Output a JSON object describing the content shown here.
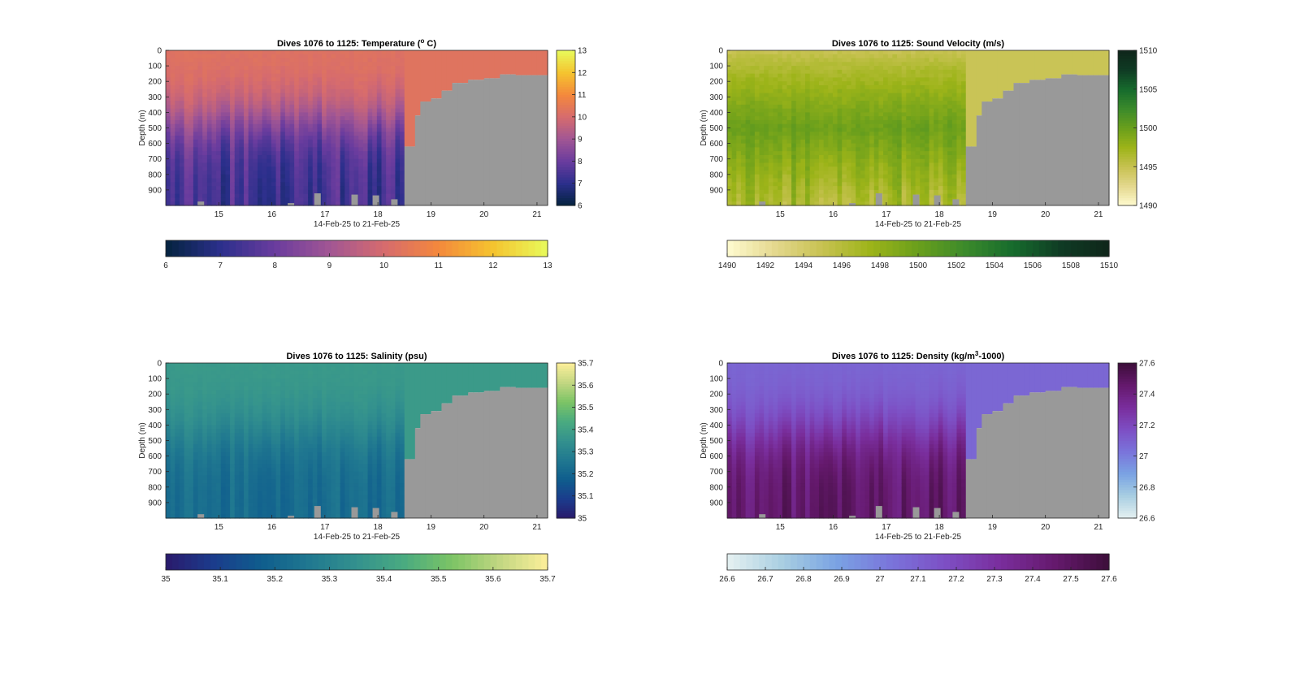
{
  "figure": {
    "background": "#ffffff",
    "gap_color": "#999999",
    "axis_color": "#262626"
  },
  "chart_data": [
    {
      "type": "heatmap",
      "title": "Dives 1076 to 1125: Temperature (° C)",
      "title_parts": [
        "Dives 1076 to 1125: Temperature (",
        "o",
        " C)"
      ],
      "ylabel": "Depth (m)",
      "xlabel": "14-Feb-25 to 21-Feb-25",
      "xlim": [
        14,
        21.2
      ],
      "ylim": [
        0,
        1000
      ],
      "y_reversed": true,
      "xticks": [
        15,
        16,
        17,
        18,
        19,
        20,
        21
      ],
      "xtick_labels": [
        "15",
        "16",
        "17",
        "18",
        "19",
        "20",
        "21"
      ],
      "yticks": [
        0,
        100,
        200,
        300,
        400,
        500,
        600,
        700,
        800,
        900
      ],
      "ytick_labels": [
        "0",
        "100",
        "200",
        "300",
        "400",
        "500",
        "600",
        "700",
        "800",
        "900"
      ],
      "colormap": "thermal",
      "colormap_stops": [
        "#04233e",
        "#2b2f8c",
        "#6a3c9e",
        "#a15694",
        "#d66b6e",
        "#f4883c",
        "#f5c42f",
        "#e8fa5b"
      ],
      "clim": [
        6,
        13
      ],
      "right_colorbar_ticks": [
        6,
        7,
        8,
        9,
        10,
        11,
        12,
        13
      ],
      "bottom_colorbar_ticks": [
        6,
        7,
        8,
        9,
        10,
        11,
        12,
        13
      ],
      "profile": {
        "surface": 10.3,
        "deep": 7.3,
        "thermocline_m": 450,
        "variation": 0.9
      },
      "data_end_day": 18.5,
      "gap_top_depth_by_day": [
        [
          18.5,
          620
        ],
        [
          18.65,
          420
        ],
        [
          18.8,
          330
        ],
        [
          19.0,
          310
        ],
        [
          19.2,
          260
        ],
        [
          19.4,
          210
        ],
        [
          19.7,
          190
        ],
        [
          20.0,
          180
        ],
        [
          20.25,
          155
        ],
        [
          20.6,
          160
        ],
        [
          21.0,
          160
        ],
        [
          21.2,
          180
        ]
      ]
    },
    {
      "type": "heatmap",
      "title": "Dives 1076 to 1125: Sound Velocity (m/s)",
      "ylabel": "Depth (m)",
      "xlabel": "14-Feb-25 to 21-Feb-25",
      "xlim": [
        14,
        21.2
      ],
      "ylim": [
        0,
        1000
      ],
      "y_reversed": true,
      "xticks": [
        15,
        16,
        17,
        18,
        19,
        20,
        21
      ],
      "xtick_labels": [
        "15",
        "16",
        "17",
        "18",
        "19",
        "20",
        "21"
      ],
      "yticks": [
        0,
        100,
        200,
        300,
        400,
        500,
        600,
        700,
        800,
        900
      ],
      "ytick_labels": [
        "0",
        "100",
        "200",
        "300",
        "400",
        "500",
        "600",
        "700",
        "800",
        "900"
      ],
      "colormap": "speed",
      "colormap_stops": [
        "#fffbd0",
        "#e4d88e",
        "#c7c251",
        "#9db419",
        "#6a9f1c",
        "#3b8a2b",
        "#166b2d",
        "#0f3b24",
        "#0f261a"
      ],
      "clim": [
        1490,
        1510
      ],
      "right_colorbar_ticks": [
        1490,
        1495,
        1500,
        1505,
        1510
      ],
      "bottom_colorbar_ticks": [
        1490,
        1492,
        1494,
        1496,
        1498,
        1500,
        1502,
        1504,
        1506,
        1508,
        1510
      ],
      "profile": {
        "surface": 1494.8,
        "deep": 1496.5,
        "mid": 1500.5,
        "variation": 2.0
      },
      "data_end_day": 18.5,
      "gap_top_depth_by_day": [
        [
          18.5,
          620
        ],
        [
          18.65,
          420
        ],
        [
          18.8,
          330
        ],
        [
          19.0,
          310
        ],
        [
          19.2,
          260
        ],
        [
          19.4,
          210
        ],
        [
          19.7,
          190
        ],
        [
          20.0,
          180
        ],
        [
          20.25,
          155
        ],
        [
          20.6,
          160
        ],
        [
          21.0,
          160
        ],
        [
          21.2,
          180
        ]
      ]
    },
    {
      "type": "heatmap",
      "title": "Dives 1076 to 1125: Salinity (psu)",
      "ylabel": "Depth (m)",
      "xlabel": "14-Feb-25 to 21-Feb-25",
      "xlim": [
        14,
        21.2
      ],
      "ylim": [
        0,
        1000
      ],
      "y_reversed": true,
      "xticks": [
        15,
        16,
        17,
        18,
        19,
        20,
        21
      ],
      "xtick_labels": [
        "15",
        "16",
        "17",
        "18",
        "19",
        "20",
        "21"
      ],
      "yticks": [
        0,
        100,
        200,
        300,
        400,
        500,
        600,
        700,
        800,
        900
      ],
      "ytick_labels": [
        "0",
        "100",
        "200",
        "300",
        "400",
        "500",
        "600",
        "700",
        "800",
        "900"
      ],
      "colormap": "haline",
      "colormap_stops": [
        "#2a1a6c",
        "#1b3c8c",
        "#0f5d8d",
        "#207890",
        "#33918e",
        "#4aab80",
        "#7cc465",
        "#c2d782",
        "#fdef9a"
      ],
      "clim": [
        35,
        35.7
      ],
      "right_colorbar_ticks": [
        35,
        35.1,
        35.2,
        35.3,
        35.4,
        35.5,
        35.6,
        35.7
      ],
      "bottom_colorbar_ticks": [
        35,
        35.1,
        35.2,
        35.3,
        35.4,
        35.5,
        35.6,
        35.7
      ],
      "profile": {
        "surface": 35.38,
        "deep": 35.22,
        "thermocline_m": 450,
        "variation": 0.05
      },
      "data_end_day": 18.5,
      "gap_top_depth_by_day": [
        [
          18.5,
          620
        ],
        [
          18.65,
          420
        ],
        [
          18.8,
          330
        ],
        [
          19.0,
          310
        ],
        [
          19.2,
          260
        ],
        [
          19.4,
          210
        ],
        [
          19.7,
          190
        ],
        [
          20.0,
          180
        ],
        [
          20.25,
          155
        ],
        [
          20.6,
          160
        ],
        [
          21.0,
          160
        ],
        [
          21.2,
          180
        ]
      ]
    },
    {
      "type": "heatmap",
      "title": "Dives 1076 to 1125: Density (kg/m³-1000)",
      "title_parts": [
        "Dives 1076 to 1125: Density (kg/m",
        "3",
        "-1000)"
      ],
      "ylabel": "Depth (m)",
      "xlabel": "14-Feb-25 to 21-Feb-25",
      "xlim": [
        14,
        21.2
      ],
      "ylim": [
        0,
        1000
      ],
      "y_reversed": true,
      "xticks": [
        15,
        16,
        17,
        18,
        19,
        20,
        21
      ],
      "xtick_labels": [
        "15",
        "16",
        "17",
        "18",
        "19",
        "20",
        "21"
      ],
      "yticks": [
        0,
        100,
        200,
        300,
        400,
        500,
        600,
        700,
        800,
        900
      ],
      "ytick_labels": [
        "0",
        "100",
        "200",
        "300",
        "400",
        "500",
        "600",
        "700",
        "800",
        "900"
      ],
      "colormap": "dense",
      "colormap_stops": [
        "#e6f1f1",
        "#a9cfe2",
        "#7aa3e3",
        "#7a74db",
        "#7d4fc4",
        "#7a2e9d",
        "#65196d",
        "#3d0e3a"
      ],
      "clim": [
        26.6,
        27.6
      ],
      "right_colorbar_ticks": [
        26.6,
        26.8,
        27,
        27.2,
        27.4,
        27.6
      ],
      "bottom_colorbar_ticks": [
        26.6,
        26.7,
        26.8,
        26.9,
        27,
        27.1,
        27.2,
        27.3,
        27.4,
        27.5,
        27.6
      ],
      "profile": {
        "surface": 27.08,
        "deep": 27.47,
        "thermocline_m": 450,
        "variation": 0.04
      },
      "data_end_day": 18.5,
      "gap_top_depth_by_day": [
        [
          18.5,
          620
        ],
        [
          18.65,
          420
        ],
        [
          18.8,
          330
        ],
        [
          19.0,
          310
        ],
        [
          19.2,
          260
        ],
        [
          19.4,
          210
        ],
        [
          19.7,
          190
        ],
        [
          20.0,
          180
        ],
        [
          20.25,
          155
        ],
        [
          20.6,
          160
        ],
        [
          21.0,
          160
        ],
        [
          21.2,
          180
        ]
      ]
    }
  ]
}
